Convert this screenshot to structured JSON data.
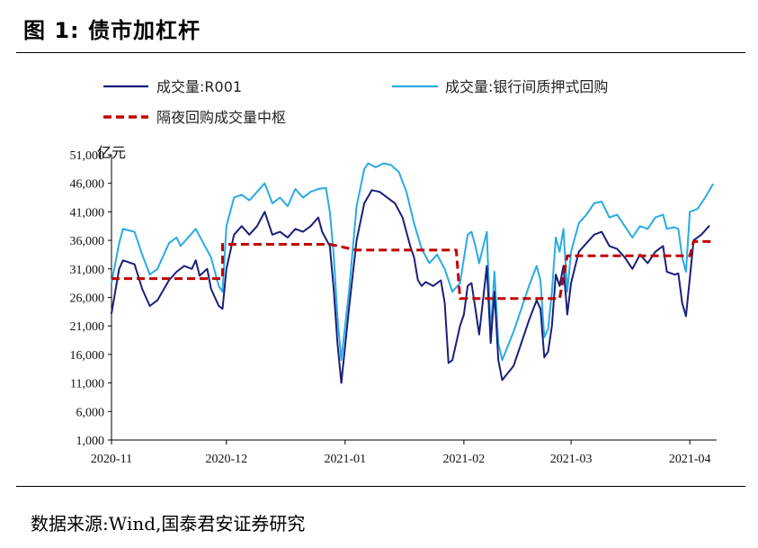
{
  "figure": {
    "title": "图 1:  债市加杠杆",
    "source": "数据来源:Wind,国泰君安证券研究"
  },
  "chart_data": {
    "type": "line",
    "ylabel": "亿元",
    "ylim": [
      1000,
      51000
    ],
    "yticks": [
      1000,
      6000,
      11000,
      16000,
      21000,
      26000,
      31000,
      36000,
      41000,
      46000,
      51000
    ],
    "ytick_labels": [
      "1,000",
      "6,000",
      "11,000",
      "16,000",
      "21,000",
      "26,000",
      "31,000",
      "36,000",
      "41,000",
      "46,000",
      "51,000"
    ],
    "xlim": [
      "2020-11-01",
      "2021-04-08"
    ],
    "xticks": [
      "2020-11-01",
      "2020-12-01",
      "2021-01-01",
      "2021-02-01",
      "2021-03-01",
      "2021-04-01"
    ],
    "xtick_labels": [
      "2020-11",
      "2020-12",
      "2021-01",
      "2021-02",
      "2021-03",
      "2021-04"
    ],
    "legend_position": "top",
    "series": [
      {
        "name": "成交量:R001",
        "color": "#1a1f7a",
        "style": "solid",
        "points": [
          [
            "2020-11-01",
            23200
          ],
          [
            "2020-11-03",
            31000
          ],
          [
            "2020-11-04",
            32500
          ],
          [
            "2020-11-07",
            31800
          ],
          [
            "2020-11-09",
            27500
          ],
          [
            "2020-11-11",
            24500
          ],
          [
            "2020-11-13",
            25500
          ],
          [
            "2020-11-16",
            29000
          ],
          [
            "2020-11-18",
            30500
          ],
          [
            "2020-11-20",
            31500
          ],
          [
            "2020-11-22",
            31000
          ],
          [
            "2020-11-23",
            32500
          ],
          [
            "2020-11-24",
            29800
          ],
          [
            "2020-11-26",
            31000
          ],
          [
            "2020-11-27",
            27500
          ],
          [
            "2020-11-29",
            24500
          ],
          [
            "2020-11-30",
            24000
          ],
          [
            "2020-12-01",
            31000
          ],
          [
            "2020-12-03",
            37000
          ],
          [
            "2020-12-05",
            38500
          ],
          [
            "2020-12-07",
            37000
          ],
          [
            "2020-12-09",
            38500
          ],
          [
            "2020-12-11",
            41000
          ],
          [
            "2020-12-13",
            37000
          ],
          [
            "2020-12-15",
            37500
          ],
          [
            "2020-12-17",
            36500
          ],
          [
            "2020-12-19",
            38000
          ],
          [
            "2020-12-21",
            37500
          ],
          [
            "2020-12-23",
            38500
          ],
          [
            "2020-12-25",
            40000
          ],
          [
            "2020-12-26",
            37500
          ],
          [
            "2020-12-28",
            35000
          ],
          [
            "2020-12-29",
            27500
          ],
          [
            "2020-12-30",
            18000
          ],
          [
            "2020-12-31",
            11000
          ],
          [
            "2021-01-02",
            24000
          ],
          [
            "2021-01-04",
            36000
          ],
          [
            "2021-01-06",
            42500
          ],
          [
            "2021-01-08",
            44800
          ],
          [
            "2021-01-10",
            44500
          ],
          [
            "2021-01-12",
            43500
          ],
          [
            "2021-01-14",
            42500
          ],
          [
            "2021-01-16",
            40000
          ],
          [
            "2021-01-18",
            35000
          ],
          [
            "2021-01-19",
            33000
          ],
          [
            "2021-01-20",
            29000
          ],
          [
            "2021-01-21",
            28000
          ],
          [
            "2021-01-22",
            28700
          ],
          [
            "2021-01-24",
            28000
          ],
          [
            "2021-01-26",
            29000
          ],
          [
            "2021-01-27",
            25000
          ],
          [
            "2021-01-28",
            14500
          ],
          [
            "2021-01-29",
            15000
          ],
          [
            "2021-01-31",
            21000
          ],
          [
            "2021-02-01",
            23000
          ],
          [
            "2021-02-02",
            28000
          ],
          [
            "2021-02-03",
            28500
          ],
          [
            "2021-02-04",
            24000
          ],
          [
            "2021-02-05",
            19500
          ],
          [
            "2021-02-07",
            31500
          ],
          [
            "2021-02-08",
            18000
          ],
          [
            "2021-02-09",
            27000
          ],
          [
            "2021-02-10",
            15000
          ],
          [
            "2021-02-11",
            11500
          ],
          [
            "2021-02-14",
            14000
          ],
          [
            "2021-02-16",
            18000
          ],
          [
            "2021-02-18",
            22000
          ],
          [
            "2021-02-20",
            25500
          ],
          [
            "2021-02-21",
            24000
          ],
          [
            "2021-02-22",
            15500
          ],
          [
            "2021-02-23",
            16500
          ],
          [
            "2021-02-24",
            21000
          ],
          [
            "2021-02-25",
            30000
          ],
          [
            "2021-02-26",
            28000
          ],
          [
            "2021-02-27",
            31500
          ],
          [
            "2021-02-28",
            23000
          ],
          [
            "2021-03-01",
            28500
          ],
          [
            "2021-03-03",
            34000
          ],
          [
            "2021-03-05",
            35500
          ],
          [
            "2021-03-07",
            37000
          ],
          [
            "2021-03-09",
            37500
          ],
          [
            "2021-03-11",
            35000
          ],
          [
            "2021-03-13",
            34500
          ],
          [
            "2021-03-15",
            33000
          ],
          [
            "2021-03-17",
            31000
          ],
          [
            "2021-03-19",
            33500
          ],
          [
            "2021-03-21",
            32000
          ],
          [
            "2021-03-23",
            34000
          ],
          [
            "2021-03-25",
            35000
          ],
          [
            "2021-03-26",
            30500
          ],
          [
            "2021-03-28",
            30000
          ],
          [
            "2021-03-29",
            30200
          ],
          [
            "2021-03-30",
            25000
          ],
          [
            "2021-03-31",
            22700
          ],
          [
            "2021-04-02",
            36000
          ],
          [
            "2021-04-04",
            37000
          ],
          [
            "2021-04-06",
            38500
          ]
        ]
      },
      {
        "name": "成交量:银行间质押式回购",
        "color": "#29abe2",
        "style": "solid",
        "points": [
          [
            "2020-11-01",
            28500
          ],
          [
            "2020-11-03",
            35500
          ],
          [
            "2020-11-04",
            38000
          ],
          [
            "2020-11-07",
            37500
          ],
          [
            "2020-11-09",
            33500
          ],
          [
            "2020-11-11",
            30000
          ],
          [
            "2020-11-13",
            31000
          ],
          [
            "2020-11-16",
            35500
          ],
          [
            "2020-11-18",
            36500
          ],
          [
            "2020-11-19",
            35000
          ],
          [
            "2020-11-21",
            36500
          ],
          [
            "2020-11-23",
            38000
          ],
          [
            "2020-11-25",
            35500
          ],
          [
            "2020-11-27",
            33000
          ],
          [
            "2020-11-29",
            28000
          ],
          [
            "2020-11-30",
            27000
          ],
          [
            "2020-12-01",
            38500
          ],
          [
            "2020-12-03",
            43500
          ],
          [
            "2020-12-05",
            44000
          ],
          [
            "2020-12-07",
            43000
          ],
          [
            "2020-12-09",
            44500
          ],
          [
            "2020-12-11",
            46000
          ],
          [
            "2020-12-13",
            42500
          ],
          [
            "2020-12-15",
            43500
          ],
          [
            "2020-12-17",
            42000
          ],
          [
            "2020-12-19",
            45000
          ],
          [
            "2020-12-21",
            43500
          ],
          [
            "2020-12-23",
            44500
          ],
          [
            "2020-12-25",
            45000
          ],
          [
            "2020-12-27",
            45200
          ],
          [
            "2020-12-28",
            41000
          ],
          [
            "2020-12-29",
            33500
          ],
          [
            "2020-12-30",
            22500
          ],
          [
            "2020-12-31",
            15000
          ],
          [
            "2021-01-02",
            27000
          ],
          [
            "2021-01-04",
            42000
          ],
          [
            "2021-01-06",
            48500
          ],
          [
            "2021-01-07",
            49500
          ],
          [
            "2021-01-09",
            48800
          ],
          [
            "2021-01-11",
            49500
          ],
          [
            "2021-01-13",
            49200
          ],
          [
            "2021-01-15",
            48000
          ],
          [
            "2021-01-17",
            44500
          ],
          [
            "2021-01-19",
            39000
          ],
          [
            "2021-01-21",
            34500
          ],
          [
            "2021-01-23",
            32000
          ],
          [
            "2021-01-25",
            33500
          ],
          [
            "2021-01-27",
            31000
          ],
          [
            "2021-01-29",
            27000
          ],
          [
            "2021-01-31",
            28500
          ],
          [
            "2021-02-02",
            37000
          ],
          [
            "2021-02-03",
            37500
          ],
          [
            "2021-02-04",
            35000
          ],
          [
            "2021-02-05",
            32000
          ],
          [
            "2021-02-07",
            37500
          ],
          [
            "2021-02-08",
            19500
          ],
          [
            "2021-02-09",
            30500
          ],
          [
            "2021-02-10",
            18000
          ],
          [
            "2021-02-11",
            15000
          ],
          [
            "2021-02-14",
            20000
          ],
          [
            "2021-02-16",
            24000
          ],
          [
            "2021-02-18",
            28000
          ],
          [
            "2021-02-20",
            31500
          ],
          [
            "2021-02-21",
            29000
          ],
          [
            "2021-02-22",
            19000
          ],
          [
            "2021-02-23",
            20500
          ],
          [
            "2021-02-24",
            27000
          ],
          [
            "2021-02-25",
            36500
          ],
          [
            "2021-02-26",
            34000
          ],
          [
            "2021-02-27",
            38000
          ],
          [
            "2021-02-28",
            27000
          ],
          [
            "2021-03-01",
            34000
          ],
          [
            "2021-03-03",
            39000
          ],
          [
            "2021-03-05",
            40500
          ],
          [
            "2021-03-07",
            42500
          ],
          [
            "2021-03-09",
            42800
          ],
          [
            "2021-03-11",
            40000
          ],
          [
            "2021-03-13",
            40500
          ],
          [
            "2021-03-15",
            38500
          ],
          [
            "2021-03-17",
            36500
          ],
          [
            "2021-03-19",
            38500
          ],
          [
            "2021-03-21",
            38000
          ],
          [
            "2021-03-23",
            40000
          ],
          [
            "2021-03-25",
            40500
          ],
          [
            "2021-03-26",
            38000
          ],
          [
            "2021-03-28",
            38300
          ],
          [
            "2021-03-29",
            38000
          ],
          [
            "2021-03-30",
            33000
          ],
          [
            "2021-03-31",
            30500
          ],
          [
            "2021-04-01",
            41000
          ],
          [
            "2021-04-03",
            41500
          ],
          [
            "2021-04-05",
            43500
          ],
          [
            "2021-04-07",
            45800
          ]
        ]
      },
      {
        "name": "隔夜回购成交量中枢",
        "color": "#c00000",
        "style": "dashed",
        "points": [
          [
            "2020-11-01",
            29300
          ],
          [
            "2020-11-30",
            29300
          ],
          [
            "2020-11-30",
            35300
          ],
          [
            "2020-12-28",
            35300
          ],
          [
            "2021-01-04",
            34300
          ],
          [
            "2021-01-30",
            34300
          ],
          [
            "2021-01-31",
            25800
          ],
          [
            "2021-02-26",
            25800
          ],
          [
            "2021-02-28",
            33300
          ],
          [
            "2021-04-01",
            33300
          ],
          [
            "2021-04-02",
            35800
          ],
          [
            "2021-04-07",
            35800
          ]
        ]
      }
    ]
  }
}
